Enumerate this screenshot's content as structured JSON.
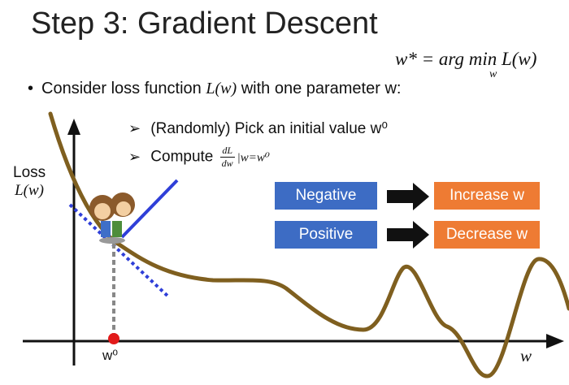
{
  "title": "Step 3: Gradient Descent",
  "formula": {
    "main": "w* = arg min L(w)",
    "subscript": "w"
  },
  "bullet": {
    "prefix": "Consider loss function ",
    "math": "L(w)",
    "suffix": " with one parameter w:"
  },
  "steps": [
    {
      "text": "(Randomly) Pick an initial value w⁰"
    },
    {
      "prefix": "Compute ",
      "frac_num": "dL",
      "frac_den": "dw",
      "eval": "|w=w⁰"
    }
  ],
  "loss_label": {
    "line1": "Loss",
    "line2": "L(w)"
  },
  "rules": [
    {
      "condition": "Negative",
      "action": "Increase w"
    },
    {
      "condition": "Positive",
      "action": "Decrease w"
    }
  ],
  "axis": {
    "x_label": "w",
    "point_label": "w⁰"
  },
  "icons": {
    "character": "kids-character-icon",
    "arrow": "arrow-right-icon"
  },
  "colors": {
    "curve": "#7f5f1f",
    "tangent": "#2f3fd8",
    "box_blue": "#3d6cc4",
    "box_orange": "#ee7b33",
    "point": "#e21a1a"
  }
}
